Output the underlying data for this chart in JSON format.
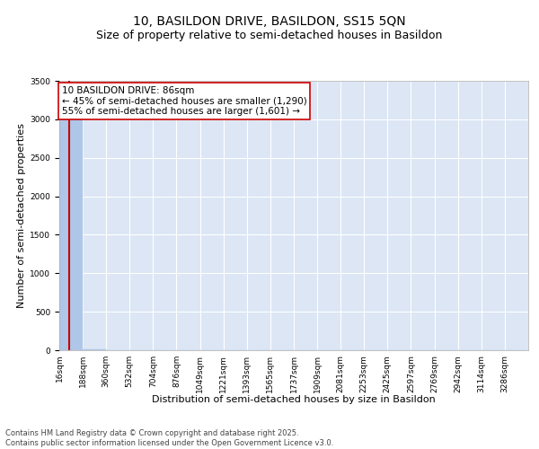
{
  "title_line1": "10, BASILDON DRIVE, BASILDON, SS15 5QN",
  "title_line2": "Size of property relative to semi-detached houses in Basildon",
  "xlabel": "Distribution of semi-detached houses by size in Basildon",
  "ylabel": "Number of semi-detached properties",
  "annotation_title": "10 BASILDON DRIVE: 86sqm",
  "annotation_line2": "← 45% of semi-detached houses are smaller (1,290)",
  "annotation_line3": "55% of semi-detached houses are larger (1,601) →",
  "footer_line1": "Contains HM Land Registry data © Crown copyright and database right 2025.",
  "footer_line2": "Contains public sector information licensed under the Open Government Licence v3.0.",
  "property_size_sqm": 86,
  "bar_edges": [
    16,
    188,
    360,
    532,
    704,
    876,
    1049,
    1221,
    1393,
    1565,
    1737,
    1909,
    2081,
    2253,
    2425,
    2597,
    2769,
    2942,
    3114,
    3286,
    3458
  ],
  "bar_heights": [
    3250,
    10,
    5,
    3,
    2,
    1,
    1,
    1,
    1,
    0,
    0,
    0,
    0,
    0,
    0,
    0,
    0,
    0,
    0,
    0
  ],
  "bar_color": "#aec6e8",
  "bar_edge_color": "#aec6e8",
  "highlight_line_color": "#cc0000",
  "annotation_box_color": "#cc0000",
  "background_color": "#dce6f5",
  "ylim": [
    0,
    3500
  ],
  "yticks": [
    0,
    500,
    1000,
    1500,
    2000,
    2500,
    3000,
    3500
  ],
  "grid_color": "#ffffff",
  "tick_label_fontsize": 6.5,
  "title_fontsize1": 10,
  "title_fontsize2": 9,
  "xlabel_fontsize": 8,
  "ylabel_fontsize": 8,
  "annotation_fontsize": 7.5,
  "footer_fontsize": 6.0
}
